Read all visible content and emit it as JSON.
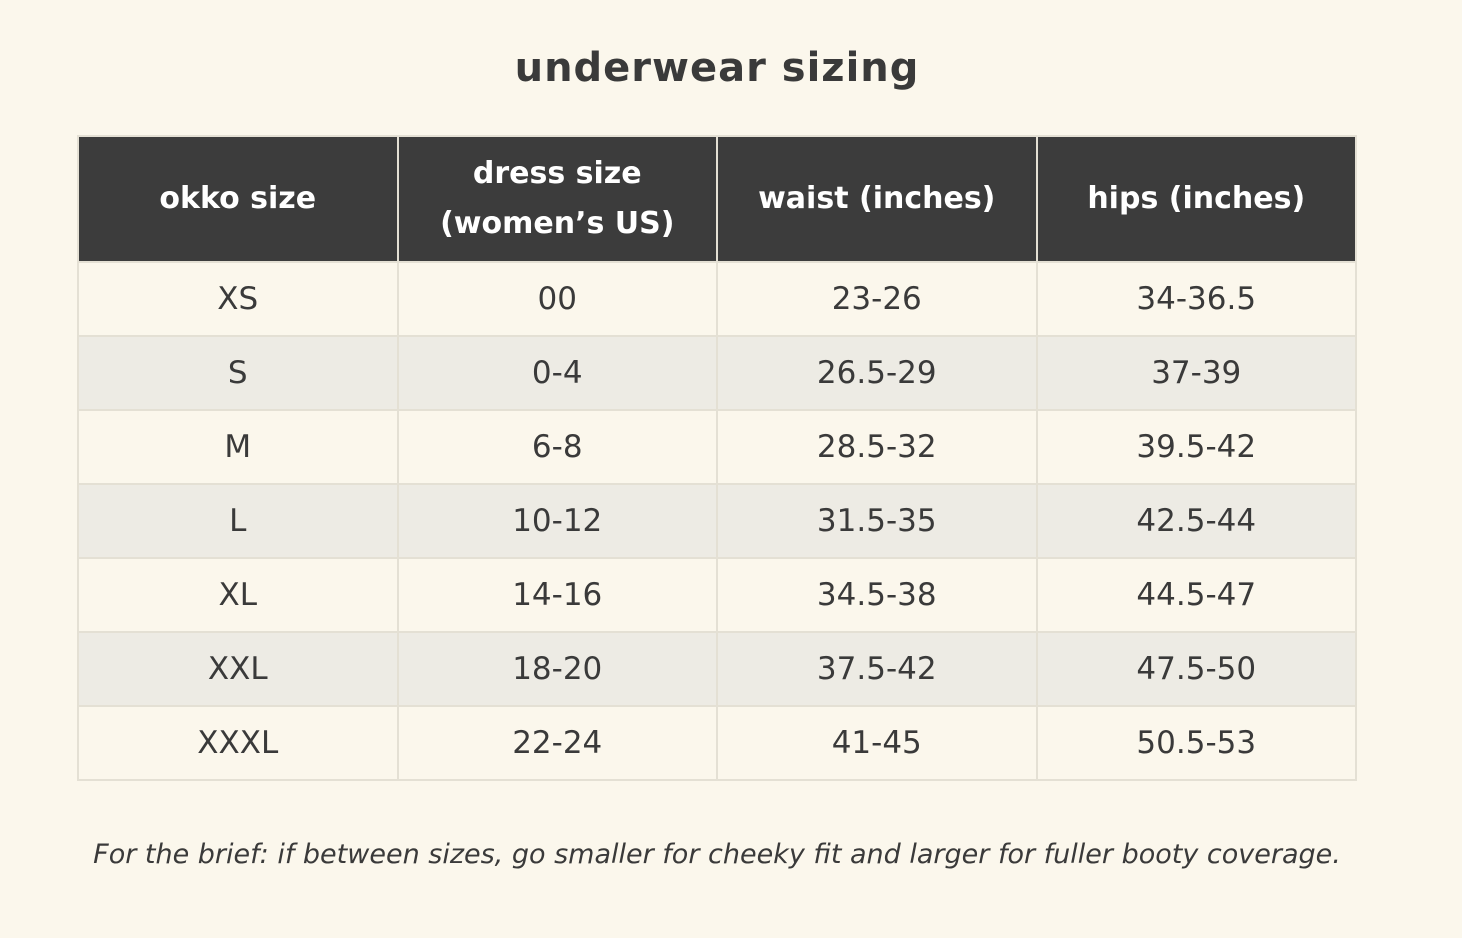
{
  "title": "underwear sizing",
  "table": {
    "headers": [
      {
        "lines": [
          "okko size"
        ]
      },
      {
        "lines": [
          "dress size",
          "(women’s US)"
        ]
      },
      {
        "lines": [
          "waist (inches)"
        ]
      },
      {
        "lines": [
          "hips (inches)"
        ]
      }
    ],
    "rows": [
      [
        "XS",
        "00",
        "23-26",
        "34-36.5"
      ],
      [
        "S",
        "0-4",
        "26.5-29",
        "37-39"
      ],
      [
        "M",
        "6-8",
        "28.5-32",
        "39.5-42"
      ],
      [
        "L",
        "10-12",
        "31.5-35",
        "42.5-44"
      ],
      [
        "XL",
        "14-16",
        "34.5-38",
        "44.5-47"
      ],
      [
        "XXL",
        "18-20",
        "37.5-42",
        "47.5-50"
      ],
      [
        "XXXL",
        "22-24",
        "41-45",
        "50.5-53"
      ]
    ]
  },
  "note": "For the brief: if between sizes, go smaller for cheeky fit and larger for fuller booty coverage.",
  "colors": {
    "background": "#fbf7ec",
    "header_bg": "#3c3c3c",
    "stripe": "#edebe4",
    "text": "#3a3a3a"
  }
}
